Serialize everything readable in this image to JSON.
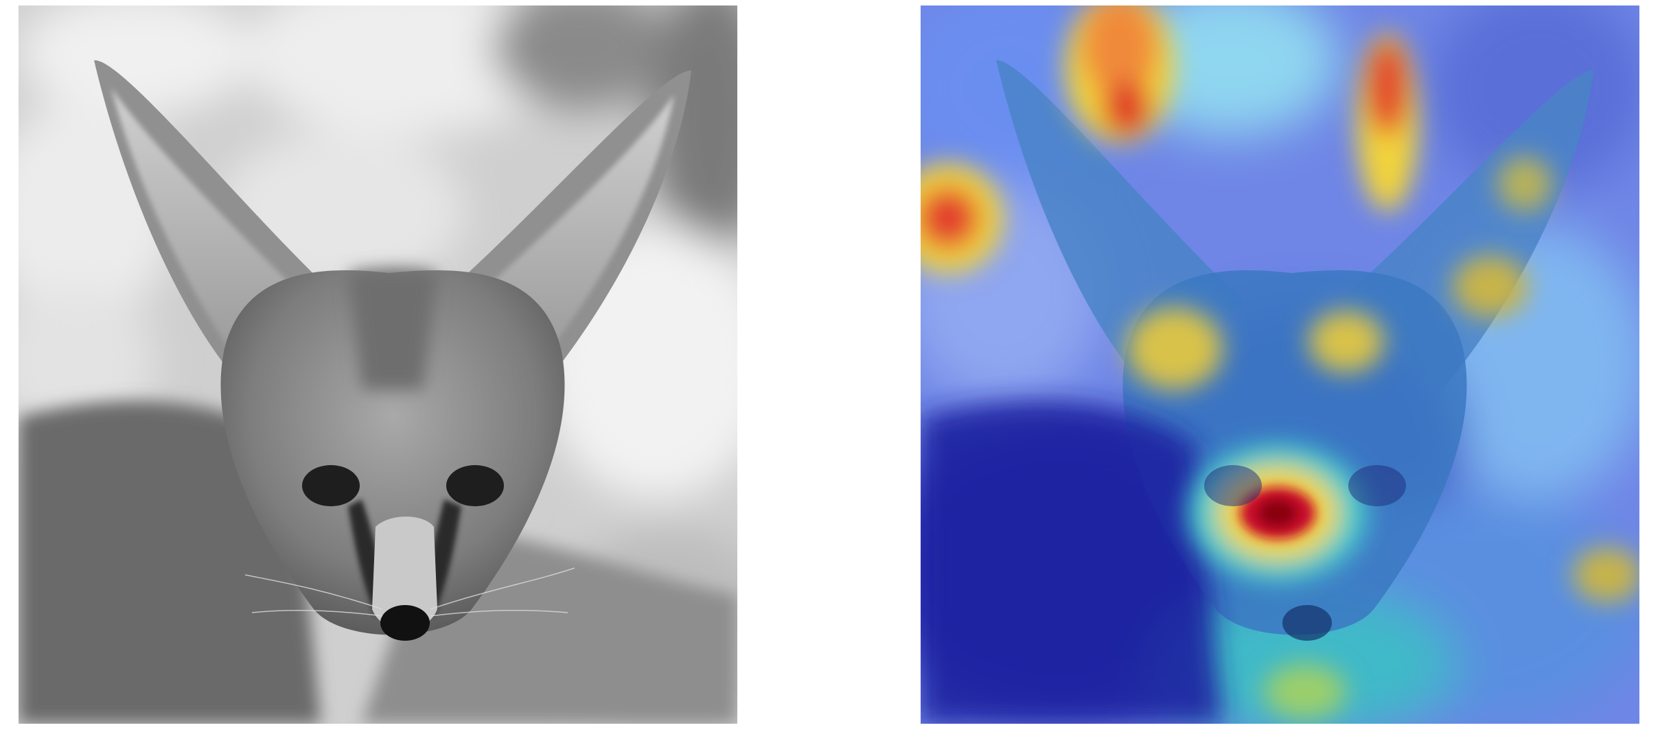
{
  "figure": {
    "panels": [
      {
        "id": "original",
        "kind": "grayscale photograph",
        "subject": "fennec-fox-face",
        "colormap": "grayscale"
      },
      {
        "id": "overlay",
        "kind": "grayscale photograph with heatmap overlay",
        "subject": "fennec-fox-face",
        "colormap": "jet"
      }
    ],
    "colors": {
      "background": "#ffffff",
      "heat_low": "#2b2fa8",
      "heat_mid": "#3fd0d8",
      "heat_high": "#f2d33a",
      "heat_peak": "#c8102e"
    }
  }
}
